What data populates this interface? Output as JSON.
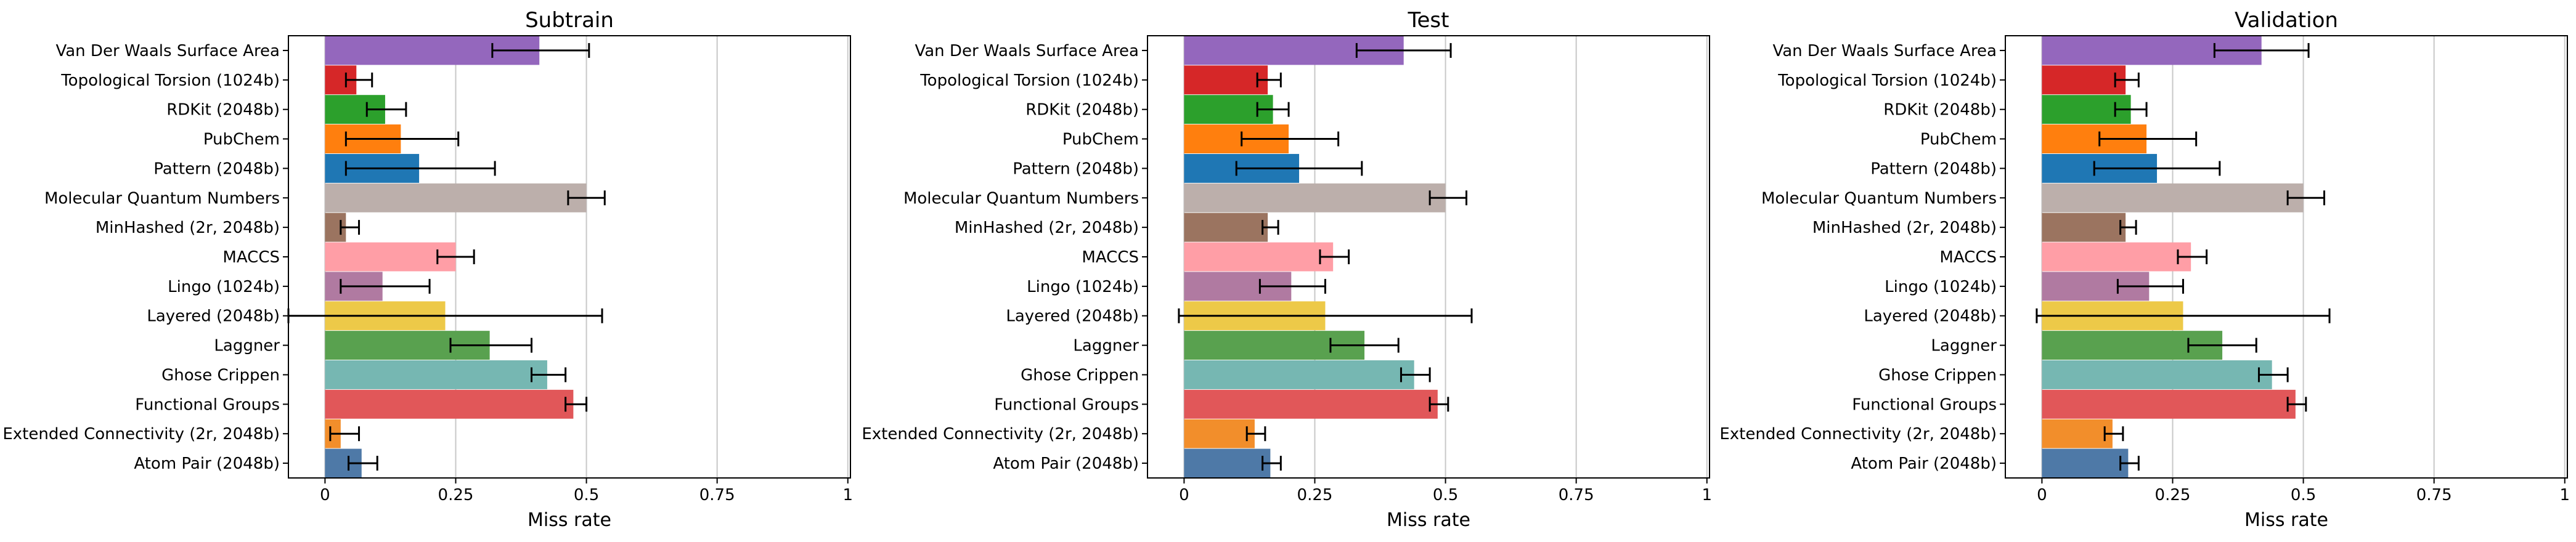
{
  "chart_data": [
    {
      "type": "bar",
      "orientation": "horizontal",
      "title": "Subtrain",
      "xlabel": "Miss rate",
      "ylabel": "",
      "xlim": [
        0,
        1
      ],
      "xticks": [
        "0",
        "0.25",
        "0.5",
        "0.75",
        "1"
      ],
      "xtick_values": [
        0,
        0.25,
        0.5,
        0.75,
        1
      ],
      "grid": "vertical",
      "categories": [
        "Van Der Waals Surface Area",
        "Topological Torsion (1024b)",
        "RDKit (2048b)",
        "PubChem",
        "Pattern (2048b)",
        "Molecular Quantum Numbers",
        "MinHashed (2r, 2048b)",
        "MACCS",
        "Lingo (1024b)",
        "Layered (2048b)",
        "Laggner",
        "Ghose Crippen",
        "Functional Groups",
        "Extended Connectivity (2r, 2048b)",
        "Atom Pair (2048b)"
      ],
      "colors": [
        "#9467bd",
        "#d62728",
        "#2ca02c",
        "#ff7f0e",
        "#1f77b4",
        "#bcafab",
        "#9b7460",
        "#ff9ea6",
        "#b07aa1",
        "#edc948",
        "#59a14f",
        "#76b7b2",
        "#e15759",
        "#f28e2b",
        "#4e79a7"
      ],
      "values": [
        0.41,
        0.06,
        0.115,
        0.145,
        0.18,
        0.5,
        0.04,
        0.25,
        0.11,
        0.23,
        0.315,
        0.425,
        0.475,
        0.03,
        0.07
      ],
      "error_low": [
        0.32,
        0.04,
        0.08,
        0.04,
        0.04,
        0.465,
        0.03,
        0.215,
        0.03,
        -0.07,
        0.24,
        0.395,
        0.46,
        0.01,
        0.045
      ],
      "error_high": [
        0.505,
        0.09,
        0.155,
        0.255,
        0.325,
        0.535,
        0.065,
        0.285,
        0.2,
        0.53,
        0.395,
        0.46,
        0.5,
        0.065,
        0.1
      ]
    },
    {
      "type": "bar",
      "orientation": "horizontal",
      "title": "Test",
      "xlabel": "Miss rate",
      "ylabel": "",
      "xlim": [
        0,
        1
      ],
      "xticks": [
        "0",
        "0.25",
        "0.5",
        "0.75",
        "1"
      ],
      "xtick_values": [
        0,
        0.25,
        0.5,
        0.75,
        1
      ],
      "grid": "vertical",
      "categories": [
        "Van Der Waals Surface Area",
        "Topological Torsion (1024b)",
        "RDKit (2048b)",
        "PubChem",
        "Pattern (2048b)",
        "Molecular Quantum Numbers",
        "MinHashed (2r, 2048b)",
        "MACCS",
        "Lingo (1024b)",
        "Layered (2048b)",
        "Laggner",
        "Ghose Crippen",
        "Functional Groups",
        "Extended Connectivity (2r, 2048b)",
        "Atom Pair (2048b)"
      ],
      "colors": [
        "#9467bd",
        "#d62728",
        "#2ca02c",
        "#ff7f0e",
        "#1f77b4",
        "#bcafab",
        "#9b7460",
        "#ff9ea6",
        "#b07aa1",
        "#edc948",
        "#59a14f",
        "#76b7b2",
        "#e15759",
        "#f28e2b",
        "#4e79a7"
      ],
      "values": [
        0.42,
        0.16,
        0.17,
        0.2,
        0.22,
        0.5,
        0.16,
        0.285,
        0.205,
        0.27,
        0.345,
        0.44,
        0.485,
        0.135,
        0.165
      ],
      "error_low": [
        0.33,
        0.14,
        0.14,
        0.11,
        0.1,
        0.47,
        0.15,
        0.26,
        0.145,
        -0.01,
        0.28,
        0.415,
        0.47,
        0.12,
        0.15
      ],
      "error_high": [
        0.51,
        0.185,
        0.2,
        0.295,
        0.34,
        0.54,
        0.18,
        0.315,
        0.27,
        0.55,
        0.41,
        0.47,
        0.505,
        0.155,
        0.185
      ]
    },
    {
      "type": "bar",
      "orientation": "horizontal",
      "title": "Validation",
      "xlabel": "Miss rate",
      "ylabel": "",
      "xlim": [
        0,
        1
      ],
      "xticks": [
        "0",
        "0.25",
        "0.5",
        "0.75",
        "1"
      ],
      "xtick_values": [
        0,
        0.25,
        0.5,
        0.75,
        1
      ],
      "grid": "vertical",
      "categories": [
        "Van Der Waals Surface Area",
        "Topological Torsion (1024b)",
        "RDKit (2048b)",
        "PubChem",
        "Pattern (2048b)",
        "Molecular Quantum Numbers",
        "MinHashed (2r, 2048b)",
        "MACCS",
        "Lingo (1024b)",
        "Layered (2048b)",
        "Laggner",
        "Ghose Crippen",
        "Functional Groups",
        "Extended Connectivity (2r, 2048b)",
        "Atom Pair (2048b)"
      ],
      "colors": [
        "#9467bd",
        "#d62728",
        "#2ca02c",
        "#ff7f0e",
        "#1f77b4",
        "#bcafab",
        "#9b7460",
        "#ff9ea6",
        "#b07aa1",
        "#edc948",
        "#59a14f",
        "#76b7b2",
        "#e15759",
        "#f28e2b",
        "#4e79a7"
      ],
      "values": [
        0.42,
        0.16,
        0.17,
        0.2,
        0.22,
        0.5,
        0.16,
        0.285,
        0.205,
        0.27,
        0.345,
        0.44,
        0.485,
        0.135,
        0.165
      ],
      "error_low": [
        0.33,
        0.14,
        0.14,
        0.11,
        0.1,
        0.47,
        0.15,
        0.26,
        0.145,
        -0.01,
        0.28,
        0.415,
        0.47,
        0.12,
        0.15
      ],
      "error_high": [
        0.51,
        0.185,
        0.2,
        0.295,
        0.34,
        0.54,
        0.18,
        0.315,
        0.27,
        0.55,
        0.41,
        0.47,
        0.505,
        0.155,
        0.185
      ]
    }
  ]
}
